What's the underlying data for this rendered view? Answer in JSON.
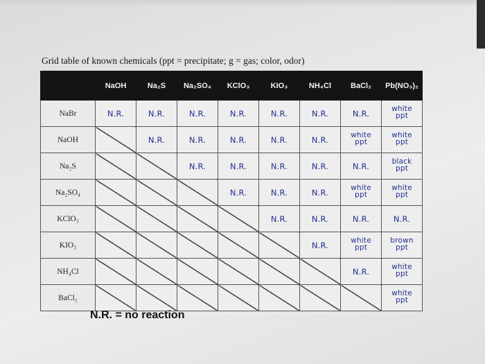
{
  "title": "Grid table of known chemicals (ppt = precipitate; g = gas; color, odor)",
  "columns": [
    "NaOH",
    "Na₂S",
    "Na₂SO₄",
    "KClO₃",
    "KIO₃",
    "NH₄Cl",
    "BaCl₂",
    "Pb(NO₃)₂"
  ],
  "rows": [
    {
      "label": "NaBr",
      "cells": [
        "N.R.",
        "N.R.",
        "N.R.",
        "N.R.",
        "N.R.",
        "N.R.",
        "N.R.",
        "white\nppt"
      ]
    },
    {
      "label": "NaOH",
      "cells": [
        "X",
        "N.R.",
        "N.R.",
        "N.R.",
        "N.R.",
        "N.R.",
        "white\nppt",
        "white\nppt"
      ]
    },
    {
      "label": "Na₂S",
      "cells": [
        "X",
        "X",
        "N.R.",
        "N.R.",
        "N.R.",
        "N.R.",
        "N.R.",
        "black\nppt"
      ]
    },
    {
      "label": "Na₂SO₄",
      "cells": [
        "X",
        "X",
        "X",
        "N.R.",
        "N.R.",
        "N.R.",
        "white\nppt",
        "white\nppt"
      ]
    },
    {
      "label": "KClO₃",
      "cells": [
        "X",
        "X",
        "X",
        "X",
        "N.R.",
        "N.R.",
        "N.R.",
        "N.R."
      ]
    },
    {
      "label": "KIO₃",
      "cells": [
        "X",
        "X",
        "X",
        "X",
        "X",
        "N.R.",
        "white\nppt",
        "brown\nppt"
      ]
    },
    {
      "label": "NH₄Cl",
      "cells": [
        "X",
        "X",
        "X",
        "X",
        "X",
        "X",
        "N.R.",
        "white\nppt"
      ]
    },
    {
      "label": "BaCl₂",
      "cells": [
        "X",
        "X",
        "X",
        "X",
        "X",
        "X",
        "X",
        "white\nppt"
      ]
    }
  ],
  "footnote": "N.R. = no reaction",
  "colors": {
    "header_bg": "#141414",
    "handwriting": "#23308f",
    "cell_bg": "#eeeeef"
  }
}
